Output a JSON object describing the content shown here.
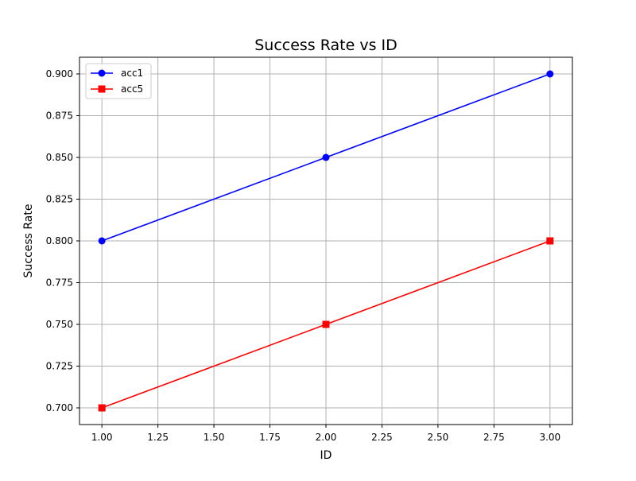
{
  "chart_data": {
    "type": "line",
    "title": "Success Rate vs ID",
    "xlabel": "ID",
    "ylabel": "Success Rate",
    "x": [
      1,
      2,
      3
    ],
    "series": [
      {
        "name": "acc1",
        "values": [
          0.8,
          0.85,
          0.9
        ],
        "color": "#0000ff",
        "marker": "circle"
      },
      {
        "name": "acc5",
        "values": [
          0.7,
          0.75,
          0.8
        ],
        "color": "#ff0000",
        "marker": "square"
      }
    ],
    "xlim": [
      0.9,
      3.1
    ],
    "ylim": [
      0.69,
      0.91
    ],
    "xticks": [
      "1.00",
      "1.25",
      "1.50",
      "1.75",
      "2.00",
      "2.25",
      "2.50",
      "2.75",
      "3.00"
    ],
    "yticks": [
      "0.700",
      "0.725",
      "0.750",
      "0.775",
      "0.800",
      "0.825",
      "0.850",
      "0.875",
      "0.900"
    ],
    "grid": true,
    "legend_position": "upper-left"
  }
}
